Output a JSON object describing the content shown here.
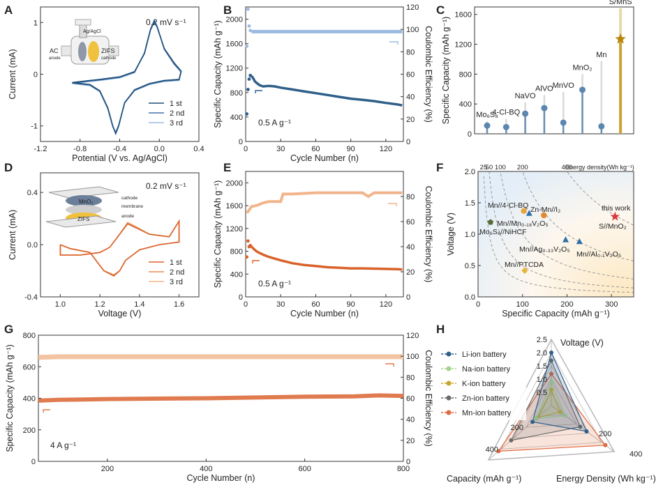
{
  "chart_data": [
    {
      "id": "A",
      "type": "line",
      "xlabel": "Potential (V vs. Ag/AgCl)",
      "ylabel": "Current (mA)",
      "xlim": [
        -1.2,
        0.4
      ],
      "ylim": [
        -1.3,
        1.3
      ],
      "xticks": [
        "-1.2",
        "-0.8",
        "-0.4",
        "0.0",
        "0.4"
      ],
      "yticks": [
        "-1",
        "0",
        "1"
      ],
      "note": "0.2 mV s⁻¹",
      "inset_labels": [
        "Ag/AgCl",
        "AC",
        "anode",
        "ZIFS",
        "cathode"
      ],
      "series": [
        {
          "name": "1 st",
          "color": "#1f4e79",
          "x": [
            -0.88,
            -0.7,
            -0.6,
            -0.52,
            -0.47,
            -0.44,
            -0.41,
            -0.35,
            -0.25,
            -0.1,
            0.05,
            0.2,
            0.22,
            0.15,
            0.05,
            -0.02,
            -0.05,
            -0.09,
            -0.15,
            -0.25,
            -0.4,
            -0.6,
            -0.88
          ],
          "y": [
            -0.16,
            -0.2,
            -0.32,
            -0.65,
            -1.0,
            -1.15,
            -1.0,
            -0.55,
            -0.3,
            -0.18,
            -0.12,
            -0.1,
            0.06,
            0.22,
            0.5,
            0.9,
            1.02,
            0.85,
            0.4,
            0.05,
            -0.05,
            -0.1,
            -0.16
          ]
        },
        {
          "name": "2 nd",
          "color": "#4472a8",
          "x": [
            -0.88,
            -0.7,
            -0.6,
            -0.52,
            -0.47,
            -0.44,
            -0.41,
            -0.35,
            -0.25,
            -0.1,
            0.05,
            0.2,
            0.22,
            0.15,
            0.05,
            -0.02,
            -0.05,
            -0.09,
            -0.15,
            -0.25,
            -0.4,
            -0.6,
            -0.88
          ],
          "y": [
            -0.17,
            -0.21,
            -0.33,
            -0.66,
            -1.01,
            -1.13,
            -0.99,
            -0.55,
            -0.31,
            -0.19,
            -0.13,
            -0.11,
            0.05,
            0.2,
            0.49,
            0.91,
            1.04,
            0.86,
            0.41,
            0.04,
            -0.06,
            -0.11,
            -0.17
          ]
        },
        {
          "name": "3 rd",
          "color": "#9bbbe0",
          "x": [
            -0.88,
            -0.7,
            -0.6,
            -0.52,
            -0.47,
            -0.44,
            -0.41,
            -0.35,
            -0.25,
            -0.1,
            0.05,
            0.2,
            0.22,
            0.15,
            0.05,
            -0.02,
            -0.05,
            -0.09,
            -0.15,
            -0.25,
            -0.4,
            -0.6,
            -0.88
          ],
          "y": [
            -0.18,
            -0.22,
            -0.34,
            -0.67,
            -1.02,
            -1.12,
            -0.98,
            -0.56,
            -0.32,
            -0.2,
            -0.14,
            -0.12,
            0.04,
            0.19,
            0.48,
            0.92,
            1.05,
            0.87,
            0.42,
            0.03,
            -0.07,
            -0.12,
            -0.18
          ]
        }
      ]
    },
    {
      "id": "B",
      "type": "scatter",
      "xlabel": "Cycle Number (n)",
      "ylabel": "Specific Capacity (mAh g⁻¹)",
      "y2label": "Coulombic Efficiency (%)",
      "xlim": [
        0,
        135
      ],
      "ylim": [
        0,
        2200
      ],
      "y2lim": [
        0,
        120
      ],
      "xticks": [
        "0",
        "30",
        "60",
        "90",
        "120"
      ],
      "yticks": [
        "0",
        "400",
        "800",
        "1200",
        "1600",
        "2000"
      ],
      "y2ticks": [
        "0",
        "20",
        "40",
        "60",
        "80",
        "100",
        "120"
      ],
      "note": "0.5  A g⁻¹",
      "series": [
        {
          "name": "Specific Capacity",
          "color": "#2f5f8a",
          "x": [
            1,
            2,
            3,
            4,
            6,
            8,
            10,
            12,
            15,
            20,
            25,
            30,
            40,
            50,
            60,
            70,
            80,
            90,
            100,
            110,
            120,
            130,
            134
          ],
          "y": [
            450,
            850,
            1020,
            1080,
            1050,
            980,
            950,
            920,
            900,
            910,
            900,
            880,
            850,
            820,
            790,
            760,
            730,
            700,
            680,
            660,
            630,
            605,
            590
          ]
        },
        {
          "name": "Coulombic Efficiency",
          "color": "#9bbbe0",
          "axis": "y2",
          "x": [
            1,
            2,
            3,
            4,
            5,
            6,
            8,
            10,
            20,
            30,
            40,
            50,
            60,
            70,
            80,
            90,
            100,
            110,
            120,
            130,
            134
          ],
          "y": [
            85,
            118,
            103,
            99,
            98,
            98,
            98,
            98,
            98,
            98,
            98,
            98,
            98,
            98,
            98,
            98,
            98,
            98,
            98,
            98,
            98
          ]
        }
      ]
    },
    {
      "id": "C",
      "type": "bar",
      "ylabel": "Specific Capacity (mAh g⁻¹)",
      "ylim": [
        0,
        1700
      ],
      "yticks": [
        "0",
        "400",
        "800",
        "1200",
        "1600"
      ],
      "categories": [
        "Mo6S8",
        "4-Cl-BQ",
        "NaVO",
        "AlVO",
        "MnVO",
        "MnO2",
        "Mn",
        "S/MnS"
      ],
      "display_labels": [
        "Mo₆S₈",
        "4-Cl-BQ",
        "NaVO",
        "AlVO",
        "MnVO",
        "MnO₂",
        "Mn",
        "S/MnS"
      ],
      "values": [
        110,
        90,
        270,
        345,
        150,
        590,
        100,
        1270
      ],
      "stem_tops": [
        170,
        200,
        420,
        520,
        560,
        800,
        970,
        1680
      ]
    },
    {
      "id": "D",
      "type": "line",
      "xlabel": "Voltage (V)",
      "ylabel": "Current (mA)",
      "xlim": [
        0.9,
        1.7
      ],
      "ylim": [
        -0.4,
        0.55
      ],
      "xticks": [
        "1.0",
        "1.2",
        "1.4",
        "1.6"
      ],
      "yticks": [
        "-0.4",
        "0.0",
        "0.4"
      ],
      "note": "0.2 mV s⁻¹",
      "inset_labels": [
        "MnO₂",
        "cathode",
        "membrane",
        "ZIFS",
        "anode"
      ],
      "series": [
        {
          "name": "1 st",
          "color": "#d9622b",
          "x": [
            1.0,
            1.0,
            1.1,
            1.2,
            1.25,
            1.3,
            1.34,
            1.38,
            1.45,
            1.55,
            1.6,
            1.6,
            1.5,
            1.4,
            1.33,
            1.3,
            1.27,
            1.22,
            1.15,
            1.05,
            1.0
          ],
          "y": [
            0.0,
            -0.08,
            -0.08,
            -0.06,
            -0.02,
            0.08,
            0.16,
            0.13,
            0.08,
            0.06,
            0.18,
            0.02,
            0.0,
            -0.04,
            -0.12,
            -0.2,
            -0.24,
            -0.2,
            -0.06,
            -0.03,
            0.0
          ]
        },
        {
          "name": "2 nd",
          "color": "#ea8c55",
          "x": [
            1.0,
            1.0,
            1.1,
            1.2,
            1.25,
            1.3,
            1.34,
            1.38,
            1.45,
            1.55,
            1.6,
            1.6,
            1.5,
            1.4,
            1.33,
            1.3,
            1.27,
            1.22,
            1.15,
            1.05,
            1.0
          ],
          "y": [
            0.0,
            -0.08,
            -0.08,
            -0.06,
            -0.02,
            0.08,
            0.165,
            0.135,
            0.08,
            0.06,
            0.18,
            0.02,
            0.0,
            -0.04,
            -0.12,
            -0.2,
            -0.235,
            -0.2,
            -0.06,
            -0.03,
            0.0
          ]
        },
        {
          "name": "3 rd",
          "color": "#f3b68a",
          "x": [
            1.0,
            1.0,
            1.1,
            1.2,
            1.25,
            1.3,
            1.34,
            1.38,
            1.45,
            1.55,
            1.6,
            1.6,
            1.5,
            1.4,
            1.33,
            1.3,
            1.27,
            1.22,
            1.15,
            1.05,
            1.0
          ],
          "y": [
            0.0,
            -0.08,
            -0.08,
            -0.06,
            -0.02,
            0.08,
            0.17,
            0.14,
            0.08,
            0.06,
            0.18,
            0.02,
            0.0,
            -0.04,
            -0.12,
            -0.2,
            -0.23,
            -0.2,
            -0.06,
            -0.03,
            0.0
          ]
        }
      ]
    },
    {
      "id": "E",
      "type": "scatter",
      "xlabel": "Cycle Number (n)",
      "ylabel": "Specific Capacity (mAh g⁻¹)",
      "y2label": "Coulombic Efficiency (%)",
      "xlim": [
        0,
        135
      ],
      "ylim": [
        0,
        2200
      ],
      "y2lim": [
        0,
        100
      ],
      "xticks": [
        "0",
        "30",
        "60",
        "90",
        "120"
      ],
      "yticks": [
        "0",
        "400",
        "800",
        "1200",
        "1600",
        "2000"
      ],
      "y2ticks": [
        "0",
        "20",
        "40",
        "60",
        "80"
      ],
      "note": "0.5  A g⁻¹",
      "series": [
        {
          "name": "Specific Capacity",
          "color": "#d9622b",
          "x": [
            1,
            2,
            3,
            4,
            6,
            8,
            10,
            15,
            20,
            30,
            40,
            50,
            60,
            70,
            80,
            90,
            100,
            110,
            120,
            130,
            134
          ],
          "y": [
            700,
            980,
            880,
            900,
            860,
            820,
            790,
            740,
            700,
            640,
            590,
            560,
            540,
            520,
            510,
            500,
            500,
            495,
            490,
            485,
            480
          ]
        },
        {
          "name": "Coulombic Efficiency",
          "color": "#f2b48c",
          "axis": "y2",
          "x": [
            1,
            2,
            5,
            10,
            15,
            20,
            25,
            30,
            32,
            40,
            60,
            80,
            100,
            105,
            110,
            120,
            130,
            134
          ],
          "y": [
            67,
            68,
            72,
            73,
            75,
            76,
            76,
            76,
            82,
            82,
            83,
            83,
            83,
            80,
            83,
            83,
            83,
            83
          ]
        }
      ]
    },
    {
      "id": "F",
      "type": "scatter",
      "xlabel": "Specific Capacity (mAh g⁻¹)",
      "ylabel": "Voltage (V)",
      "xlim": [
        0,
        350
      ],
      "ylim": [
        0,
        2.0
      ],
      "xticks": [
        "0",
        "100",
        "200",
        "300"
      ],
      "yticks": [
        "0.0",
        "0.5",
        "1.0",
        "1.5",
        "2.0"
      ],
      "energy_density_ticks": [
        "25",
        "50",
        "100",
        "200",
        "400"
      ],
      "energy_density_label": "Energy density(Wh kg⁻¹)",
      "points": [
        {
          "label": "this work",
          "label2": "S//MnO₂",
          "x": 308,
          "y": 1.28,
          "color": "#d9383a",
          "marker": "star"
        },
        {
          "label": "Mn//4-Cl-BQ",
          "x": 103,
          "y": 1.37,
          "color": "#e8a33a",
          "marker": "circle"
        },
        {
          "label": "Zn-Mn//I₂",
          "x": 148,
          "y": 1.3,
          "color": "#e8892f",
          "marker": "circle"
        },
        {
          "label": "Mn//Mn₀.₁₈V₂O₅",
          "x": 115,
          "y": 1.33,
          "color": "#2f6fa8",
          "marker": "triangle"
        },
        {
          "label": "Mo₆S₈//NiHCF",
          "x": 28,
          "y": 1.19,
          "color": "#5a6b3a",
          "marker": "pentagon"
        },
        {
          "label": "Mn//Ag₀.₃₃V₂O₅",
          "x": 197,
          "y": 0.91,
          "color": "#2f6fa8",
          "marker": "triangle"
        },
        {
          "label": "Mn//Al₀.₁V₂O₅",
          "x": 228,
          "y": 0.88,
          "color": "#2f6fa8",
          "marker": "triangle"
        },
        {
          "label": "Mn//PTCDA",
          "x": 105,
          "y": 0.42,
          "color": "#e8b43a",
          "marker": "diamond"
        }
      ]
    },
    {
      "id": "G",
      "type": "scatter",
      "xlabel": "Cycle Number (n)",
      "ylabel": "Specific Capacity (mAh g⁻¹)",
      "y2label": "Coulombic Efficiency (%)",
      "xlim": [
        60,
        800
      ],
      "ylim": [
        0,
        800
      ],
      "y2lim": [
        0,
        120
      ],
      "xticks": [
        "200",
        "400",
        "600",
        "800"
      ],
      "yticks": [
        "0",
        "200",
        "400",
        "600",
        "800"
      ],
      "y2ticks": [
        "0",
        "20",
        "40",
        "60",
        "80",
        "100",
        "120"
      ],
      "note": "4  A g⁻¹",
      "series": [
        {
          "name": "Specific Capacity",
          "color": "#e07a4f",
          "x": [
            60,
            100,
            150,
            200,
            300,
            400,
            500,
            600,
            700,
            750,
            800
          ],
          "y": [
            385,
            390,
            392,
            395,
            398,
            400,
            405,
            410,
            412,
            418,
            415
          ]
        },
        {
          "name": "Coulombic Efficiency",
          "color": "#f2c4a2",
          "axis": "y2",
          "x": [
            60,
            100,
            200,
            300,
            400,
            500,
            600,
            700,
            800
          ],
          "y": [
            99,
            99.5,
            99.5,
            99.5,
            99.5,
            99.5,
            99.5,
            99.5,
            99.5
          ]
        }
      ]
    },
    {
      "id": "H",
      "type": "radar",
      "axes": [
        "Voltage (V)",
        "Capacity (mAh g⁻¹)",
        "Energy Density (Wh kg⁻¹)"
      ],
      "voltage_ticks": [
        "0.5",
        "1.0",
        "1.5",
        "2.0",
        "2.5"
      ],
      "capacity_ticks": [
        "200",
        "400"
      ],
      "energy_ticks": [
        "200",
        "400"
      ],
      "series": [
        {
          "name": "Li-ion battery",
          "color": "#2f5f8a",
          "values": [
            2.0,
            150,
            280
          ]
        },
        {
          "name": "Na-ion battery",
          "color": "#a6d08f",
          "values": [
            0.9,
            120,
            110
          ]
        },
        {
          "name": "K-ion battery",
          "color": "#c7a52a",
          "values": [
            0.6,
            110,
            70
          ]
        },
        {
          "name": "Zn-ion battery",
          "color": "#6a6a6a",
          "values": [
            1.7,
            320,
            230
          ]
        },
        {
          "name": "Mn-ion battery",
          "color": "#e0693f",
          "values": [
            1.2,
            420,
            430
          ]
        }
      ]
    }
  ]
}
